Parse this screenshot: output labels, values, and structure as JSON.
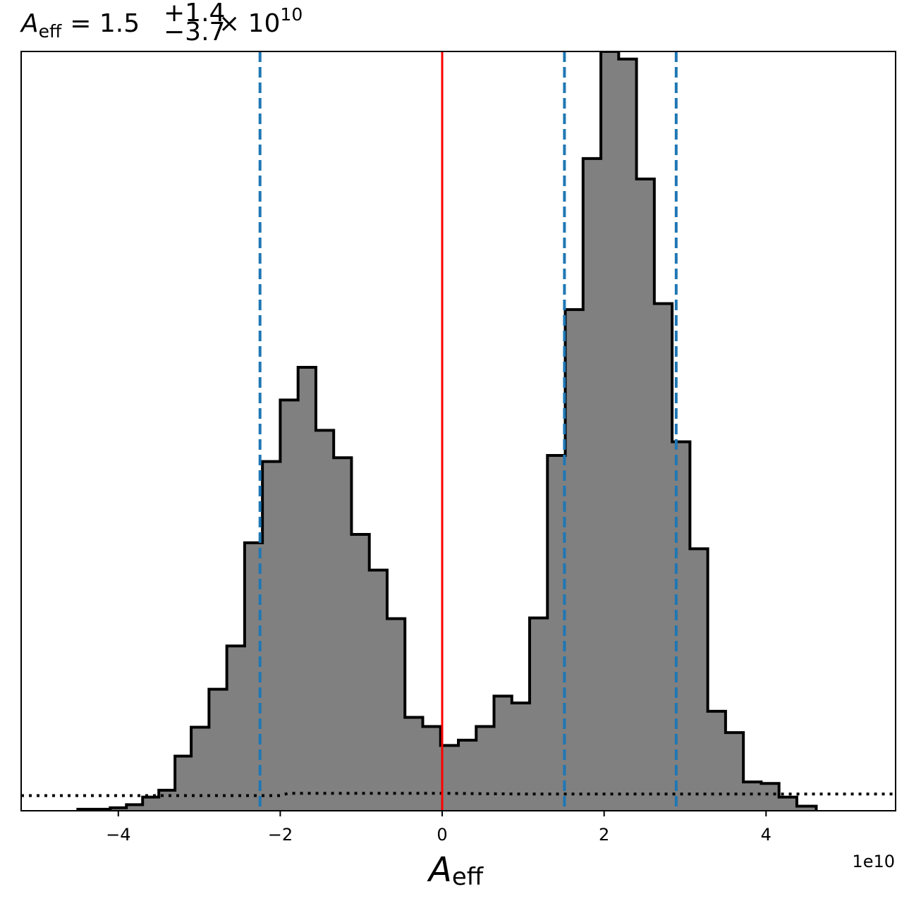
{
  "chart_data": {
    "type": "histogram",
    "title": {
      "symbol": "A",
      "symbol_sub": "eff",
      "relation": "= 1.5",
      "upper_err": "+1.4",
      "lower_err": "−3.7",
      "multiplier": "× 10",
      "exponent": "10"
    },
    "xlabel": {
      "symbol": "A",
      "sub": "eff"
    },
    "x_offset_text": "1e10",
    "x_scale_factor": 10000000000.0,
    "xlim": [
      -5.2,
      5.6
    ],
    "ylim": [
      0,
      1.0
    ],
    "xticks": [
      -4,
      -2,
      0,
      2,
      4
    ],
    "xtick_labels": [
      "−4",
      "−2",
      "0",
      "2",
      "4"
    ],
    "yticks_visible": false,
    "bin_edges": [
      -4.5,
      -4.1,
      -3.9,
      -3.7,
      -3.5,
      -3.3,
      -3.1,
      -2.88,
      -2.66,
      -2.44,
      -2.22,
      -2.0,
      -1.78,
      -1.56,
      -1.34,
      -1.12,
      -0.9,
      -0.68,
      -0.46,
      -0.24,
      -0.02,
      0.2,
      0.42,
      0.64,
      0.86,
      1.08,
      1.3,
      1.52,
      1.74,
      1.96,
      2.18,
      2.4,
      2.62,
      2.84,
      3.06,
      3.28,
      3.5,
      3.72,
      3.94,
      4.16,
      4.38,
      4.62
    ],
    "bin_heights": [
      0.002,
      0.004,
      0.008,
      0.018,
      0.027,
      0.072,
      0.11,
      0.16,
      0.217,
      0.353,
      0.46,
      0.541,
      0.584,
      0.501,
      0.465,
      0.364,
      0.317,
      0.253,
      0.123,
      0.111,
      0.086,
      0.093,
      0.111,
      0.151,
      0.142,
      0.254,
      0.468,
      0.66,
      0.859,
      1.0,
      0.99,
      0.832,
      0.668,
      0.486,
      0.345,
      0.131,
      0.103,
      0.038,
      0.036,
      0.018,
      0.006
    ],
    "fill_color": "#808080",
    "edge_color": "#000000",
    "reference_line": {
      "x": 0,
      "color": "#ff0000",
      "style": "solid"
    },
    "quantile_lines": {
      "x": [
        -2.25,
        1.51,
        2.89
      ],
      "color": "#1f77b4",
      "style": "dashed"
    },
    "prior_line": {
      "color": "#000000",
      "style": "dotted",
      "x": [
        -5.2,
        -3.1,
        -2.0,
        -1.9,
        0.0,
        1.0,
        2.0,
        5.6
      ],
      "y": [
        0.02,
        0.02,
        0.02,
        0.023,
        0.023,
        0.022,
        0.022,
        0.022
      ]
    },
    "grid": false,
    "legend": "none"
  }
}
